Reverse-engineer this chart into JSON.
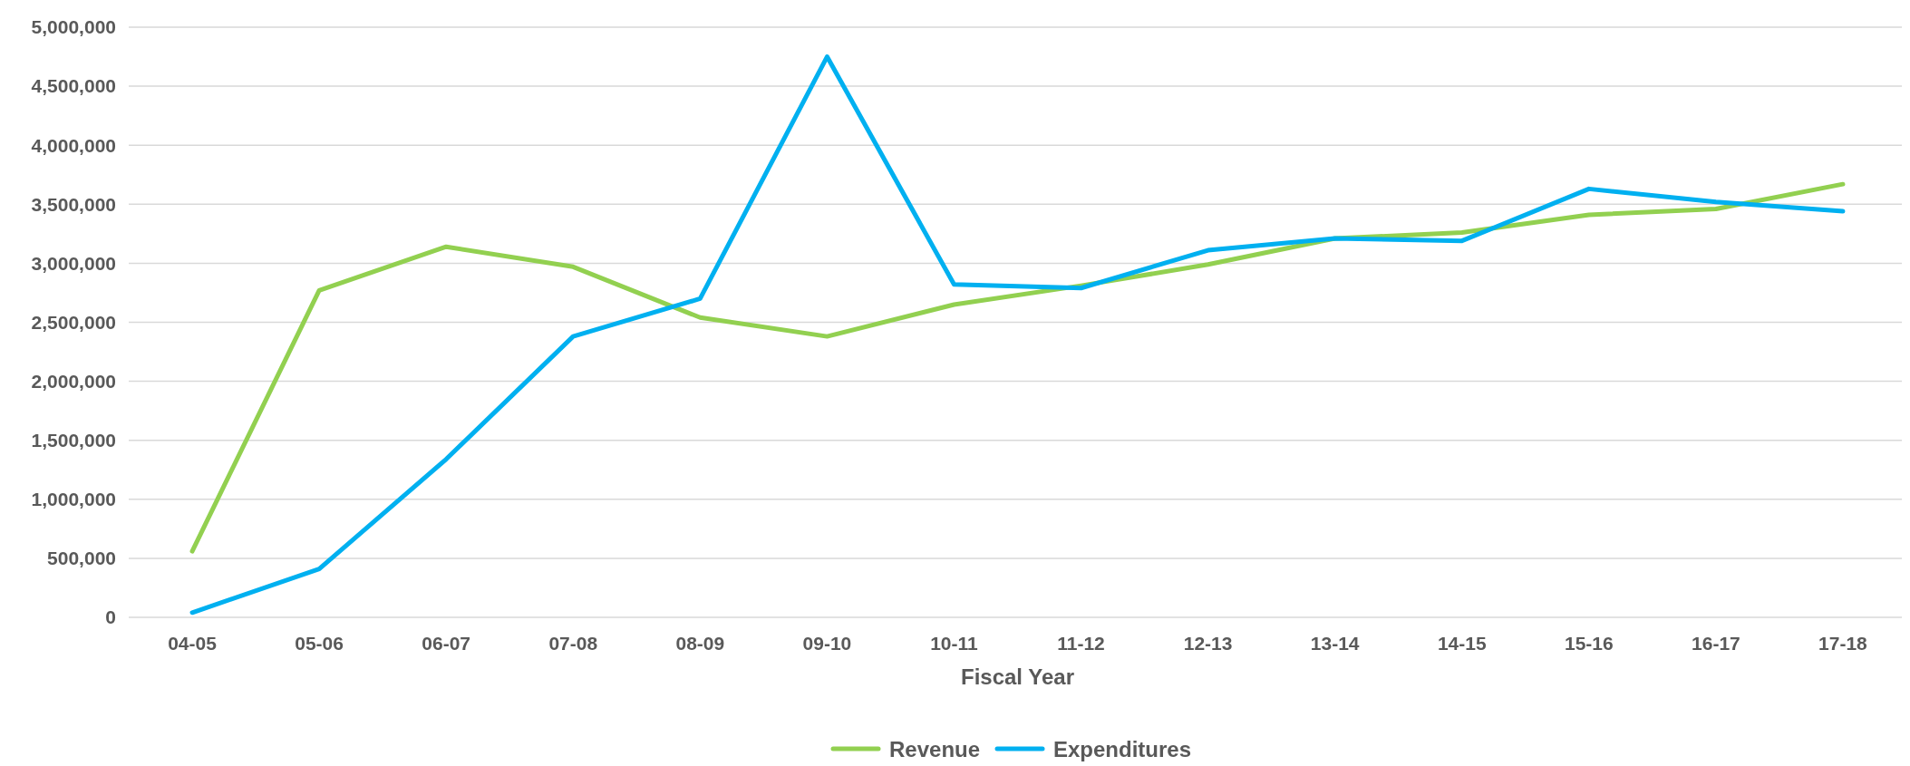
{
  "chart_data": {
    "type": "line",
    "xlabel": "Fiscal Year",
    "categories": [
      "04-05",
      "05-06",
      "06-07",
      "07-08",
      "08-09",
      "09-10",
      "10-11",
      "11-12",
      "12-13",
      "13-14",
      "14-15",
      "15-16",
      "16-17",
      "17-18"
    ],
    "series": [
      {
        "name": "Revenue",
        "color": "#92d050",
        "values": [
          560000,
          2770000,
          3140000,
          2970000,
          2540000,
          2380000,
          2650000,
          2810000,
          2990000,
          3210000,
          3260000,
          3410000,
          3460000,
          3670000
        ]
      },
      {
        "name": "Expenditures",
        "color": "#00b0f0",
        "values": [
          40000,
          410000,
          1340000,
          2380000,
          2700000,
          4750000,
          2820000,
          2790000,
          3110000,
          3210000,
          3190000,
          3630000,
          3520000,
          3440000
        ]
      }
    ],
    "ylim": [
      0,
      5000000
    ],
    "yticks": [
      {
        "value": 0,
        "label": "0"
      },
      {
        "value": 500000,
        "label": "500,000"
      },
      {
        "value": 1000000,
        "label": "1,000,000"
      },
      {
        "value": 1500000,
        "label": "1,500,000"
      },
      {
        "value": 2000000,
        "label": "2,000,000"
      },
      {
        "value": 2500000,
        "label": "2,500,000"
      },
      {
        "value": 3000000,
        "label": "3,000,000"
      },
      {
        "value": 3500000,
        "label": "3,500,000"
      },
      {
        "value": 4000000,
        "label": "4,000,000"
      },
      {
        "value": 4500000,
        "label": "4,500,000"
      },
      {
        "value": 5000000,
        "label": "5,000,000"
      }
    ],
    "grid": "y",
    "legend": "bottom",
    "marker": "none",
    "line_style": "solid"
  }
}
